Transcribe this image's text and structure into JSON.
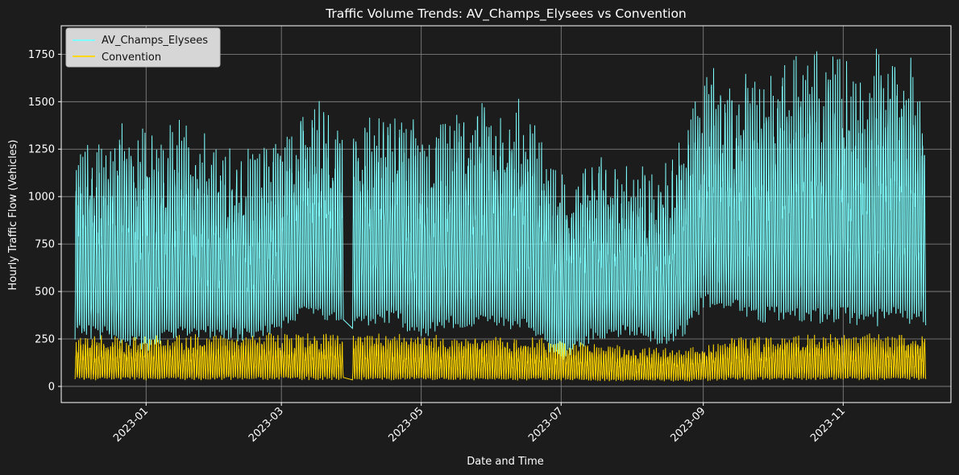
{
  "chart_data": {
    "type": "line",
    "title": "Traffic Volume Trends: AV_Champs_Elysees vs Convention",
    "xlabel": "Date and Time",
    "ylabel": "Hourly Traffic Flow (Vehicles)",
    "x_range": [
      "2022-11-25",
      "2023-12-18"
    ],
    "ylim": [
      -85,
      1900
    ],
    "grid": true,
    "legend_position": "top-left",
    "background": "#1c1c1c",
    "x_ticks": [
      "2023-01",
      "2023-03",
      "2023-05",
      "2023-07",
      "2023-09",
      "2023-11"
    ],
    "y_ticks": [
      0,
      250,
      500,
      750,
      1000,
      1250,
      1500,
      1750
    ],
    "series": [
      {
        "name": "AV_Champs_Elysees",
        "color": "#7fffff",
        "daily_envelope": {
          "dates": [
            "2022-12-01",
            "2022-12-15",
            "2023-01-01",
            "2023-01-15",
            "2023-02-01",
            "2023-02-15",
            "2023-03-01",
            "2023-03-10",
            "2023-03-20",
            "2023-03-28",
            "2023-04-01",
            "2023-04-10",
            "2023-04-20",
            "2023-05-01",
            "2023-05-15",
            "2023-06-01",
            "2023-06-15",
            "2023-07-01",
            "2023-07-15",
            "2023-08-01",
            "2023-08-15",
            "2023-08-25",
            "2023-09-01",
            "2023-09-15",
            "2023-10-01",
            "2023-10-15",
            "2023-11-01",
            "2023-11-15",
            "2023-12-01",
            "2023-12-07"
          ],
          "min": [
            150,
            140,
            50,
            150,
            150,
            140,
            200,
            250,
            240,
            250,
            200,
            210,
            210,
            150,
            200,
            200,
            180,
            40,
            150,
            190,
            110,
            170,
            300,
            250,
            200,
            200,
            200,
            180,
            200,
            200
          ],
          "max": [
            1330,
            1370,
            1420,
            1410,
            1300,
            1260,
            1350,
            1500,
            1540,
            1300,
            1470,
            1500,
            1500,
            1380,
            1450,
            1550,
            1510,
            1130,
            1250,
            1150,
            1230,
            1480,
            1700,
            1630,
            1700,
            1790,
            1720,
            1810,
            1740,
            1520
          ]
        }
      },
      {
        "name": "Convention",
        "color": "#ffd700",
        "daily_envelope": {
          "dates": [
            "2022-12-01",
            "2023-01-01",
            "2023-02-01",
            "2023-03-01",
            "2023-04-01",
            "2023-05-01",
            "2023-06-01",
            "2023-07-01",
            "2023-08-01",
            "2023-08-25",
            "2023-09-15",
            "2023-10-15",
            "2023-11-15",
            "2023-12-07"
          ],
          "min": [
            10,
            10,
            10,
            10,
            10,
            10,
            10,
            10,
            10,
            10,
            10,
            10,
            10,
            10
          ],
          "max": [
            270,
            280,
            275,
            290,
            290,
            275,
            270,
            250,
            210,
            200,
            270,
            290,
            280,
            280
          ]
        }
      }
    ]
  }
}
